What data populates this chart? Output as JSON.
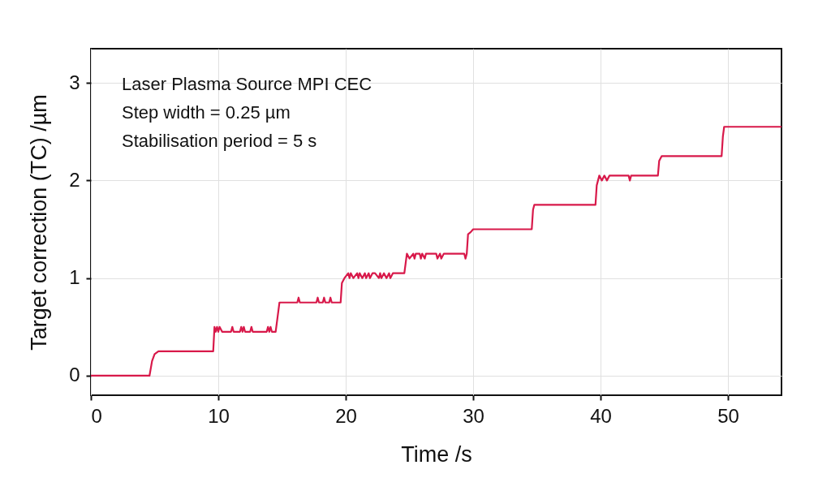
{
  "chart_data": {
    "type": "line",
    "xlabel": "Time /s",
    "ylabel": "Target correction (TC) /µm",
    "annotations": [
      "Laser Plasma Source MPI CEC",
      "Step width = 0.25 µm",
      "Stabilisation period = 5 s"
    ],
    "xlim": [
      0,
      54.2
    ],
    "xticks": [
      0,
      10,
      20,
      30,
      40,
      50
    ],
    "ylim": [
      -0.2,
      3.35
    ],
    "yticks": [
      0,
      1,
      2,
      3
    ],
    "grid": true,
    "marker": "none",
    "line_style": "solid",
    "series": [
      {
        "color": "#d8194a",
        "x": [
          0,
          4.6,
          4.8,
          5.0,
          5.3,
          9.6,
          9.7,
          9.8,
          9.9,
          10.0,
          10.1,
          10.3,
          11.0,
          11.1,
          11.2,
          11.7,
          11.8,
          11.9,
          12.0,
          12.1,
          12.5,
          12.6,
          12.7,
          13.8,
          13.9,
          14.0,
          14.1,
          14.2,
          14.5,
          14.6,
          14.8,
          16.2,
          16.3,
          16.4,
          17.7,
          17.8,
          17.9,
          18.2,
          18.3,
          18.4,
          18.7,
          18.8,
          18.9,
          19.6,
          19.7,
          19.9,
          20.2,
          20.3,
          20.4,
          20.6,
          20.9,
          21.0,
          21.1,
          21.3,
          21.5,
          21.6,
          21.8,
          21.9,
          22.1,
          22.3,
          22.6,
          22.7,
          22.8,
          23.0,
          23.2,
          23.4,
          23.5,
          23.7,
          24.6,
          24.7,
          24.8,
          25.0,
          25.3,
          25.4,
          25.5,
          25.8,
          25.9,
          26.0,
          26.2,
          26.3,
          27.1,
          27.2,
          27.4,
          27.5,
          27.7,
          27.8,
          29.3,
          29.4,
          29.5,
          29.6,
          29.8,
          30.0,
          34.6,
          34.7,
          34.8,
          35.0,
          39.6,
          39.7,
          39.9,
          40.1,
          40.3,
          40.5,
          40.7,
          40.9,
          42.2,
          42.3,
          42.4,
          44.5,
          44.6,
          44.8,
          49.5,
          49.6,
          49.7,
          54.2
        ],
        "values": [
          0,
          0,
          0.15,
          0.22,
          0.25,
          0.25,
          0.5,
          0.45,
          0.5,
          0.45,
          0.5,
          0.45,
          0.45,
          0.5,
          0.45,
          0.45,
          0.5,
          0.45,
          0.5,
          0.45,
          0.45,
          0.5,
          0.45,
          0.45,
          0.5,
          0.45,
          0.5,
          0.45,
          0.45,
          0.55,
          0.75,
          0.75,
          0.8,
          0.75,
          0.75,
          0.8,
          0.75,
          0.75,
          0.8,
          0.75,
          0.75,
          0.8,
          0.75,
          0.75,
          0.95,
          1.0,
          1.05,
          1.0,
          1.05,
          1.0,
          1.05,
          1.0,
          1.05,
          1.0,
          1.05,
          1.0,
          1.05,
          1.0,
          1.05,
          1.05,
          1.0,
          1.05,
          1.0,
          1.05,
          1.0,
          1.05,
          1.0,
          1.05,
          1.05,
          1.15,
          1.25,
          1.2,
          1.25,
          1.2,
          1.25,
          1.25,
          1.2,
          1.25,
          1.2,
          1.25,
          1.25,
          1.2,
          1.25,
          1.2,
          1.25,
          1.25,
          1.25,
          1.2,
          1.25,
          1.45,
          1.47,
          1.5,
          1.5,
          1.7,
          1.75,
          1.75,
          1.75,
          1.95,
          2.05,
          2.0,
          2.05,
          2.0,
          2.05,
          2.05,
          2.05,
          2.0,
          2.05,
          2.05,
          2.2,
          2.25,
          2.25,
          2.45,
          2.55,
          2.55
        ]
      }
    ]
  }
}
